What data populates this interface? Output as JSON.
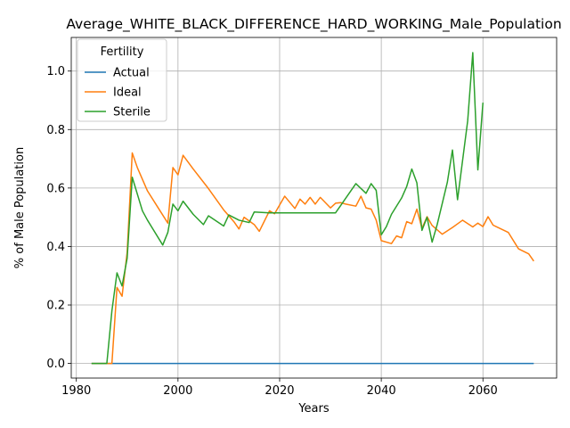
{
  "chart_data": {
    "type": "line",
    "title": "Average_WHITE_BLACK_DIFFERENCE_HARD_WORKING_Male_Population",
    "xlabel": "Years",
    "ylabel": "% of Male Population",
    "xlim": [
      1979,
      2074.5
    ],
    "ylim": [
      -0.05,
      1.115
    ],
    "xticks": [
      1980,
      2000,
      2020,
      2040,
      2060
    ],
    "yticks": [
      0.0,
      0.2,
      0.4,
      0.6,
      0.8,
      1.0
    ],
    "xtick_labels": [
      "1980",
      "2000",
      "2020",
      "2040",
      "2060"
    ],
    "ytick_labels": [
      "0.0",
      "0.2",
      "0.4",
      "0.6",
      "0.8",
      "1.0"
    ],
    "grid": true,
    "legend": {
      "title": "Fertility",
      "placement": "top-left"
    },
    "series": [
      {
        "name": "Actual",
        "color": "#1f77b4",
        "x": [
          1983,
          1990,
          2000,
          2010,
          2020,
          2030,
          2040,
          2050,
          2060,
          2070
        ],
        "y": [
          0,
          0,
          0,
          0,
          0,
          0,
          0,
          0,
          0,
          0
        ]
      },
      {
        "name": "Ideal",
        "color": "#ff7f0e",
        "x": [
          1983,
          1987,
          1988,
          1989,
          1990,
          1991,
          1992,
          1994,
          1996,
          1998,
          1999,
          2000,
          2001,
          2003,
          2006,
          2009,
          2011,
          2012,
          2013,
          2015,
          2016,
          2018,
          2019,
          2021,
          2023,
          2024,
          2025,
          2026,
          2027,
          2028,
          2030,
          2031,
          2032,
          2033,
          2035,
          2036,
          2037,
          2038,
          2039,
          2040,
          2042,
          2043,
          2044,
          2045,
          2046,
          2047,
          2048,
          2049,
          2050,
          2052,
          2054,
          2056,
          2058,
          2059,
          2060,
          2061,
          2062,
          2065,
          2067,
          2069,
          2070
        ],
        "y": [
          0.0,
          0.0,
          0.26,
          0.23,
          0.38,
          0.72,
          0.67,
          0.59,
          0.535,
          0.48,
          0.67,
          0.645,
          0.712,
          0.665,
          0.598,
          0.525,
          0.485,
          0.46,
          0.5,
          0.475,
          0.452,
          0.522,
          0.512,
          0.572,
          0.53,
          0.562,
          0.545,
          0.568,
          0.545,
          0.568,
          0.532,
          0.548,
          0.55,
          0.545,
          0.538,
          0.572,
          0.532,
          0.528,
          0.49,
          0.42,
          0.41,
          0.436,
          0.43,
          0.485,
          0.478,
          0.528,
          0.462,
          0.502,
          0.472,
          0.442,
          0.465,
          0.49,
          0.467,
          0.48,
          0.468,
          0.502,
          0.473,
          0.448,
          0.392,
          0.375,
          0.35
        ]
      },
      {
        "name": "Sterile",
        "color": "#2ca02c",
        "x": [
          1983,
          1986,
          1987,
          1988,
          1989,
          1990,
          1991,
          1993,
          1994,
          1997,
          1998,
          1999,
          2000,
          2001,
          2003,
          2005,
          2006,
          2009,
          2010,
          2012,
          2014,
          2015,
          2018,
          2020,
          2025,
          2030,
          2031,
          2033,
          2035,
          2037,
          2038,
          2039,
          2040,
          2041,
          2042,
          2044,
          2045,
          2046,
          2047,
          2048,
          2049,
          2050,
          2051,
          2053,
          2054,
          2055,
          2057,
          2058,
          2059,
          2060
        ],
        "y": [
          0.0,
          0.0,
          0.18,
          0.31,
          0.265,
          0.36,
          0.637,
          0.522,
          0.49,
          0.405,
          0.448,
          0.545,
          0.522,
          0.555,
          0.51,
          0.475,
          0.505,
          0.47,
          0.508,
          0.49,
          0.482,
          0.518,
          0.515,
          0.515,
          0.515,
          0.515,
          0.515,
          0.565,
          0.615,
          0.582,
          0.615,
          0.592,
          0.44,
          0.468,
          0.51,
          0.566,
          0.605,
          0.665,
          0.618,
          0.455,
          0.5,
          0.415,
          0.475,
          0.62,
          0.73,
          0.56,
          0.83,
          1.063,
          0.662,
          0.892
        ]
      }
    ]
  }
}
